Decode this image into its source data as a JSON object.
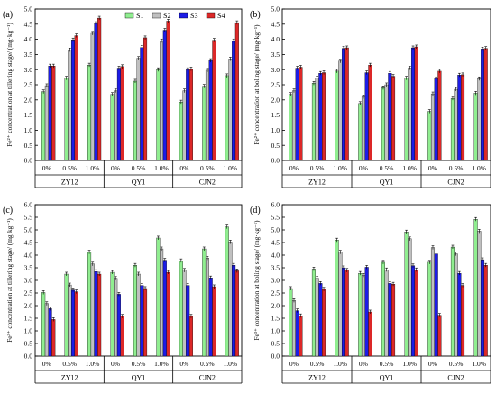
{
  "legend_labels": [
    "S1",
    "S2",
    "S3",
    "S4"
  ],
  "colors": {
    "S1": "#90EE90",
    "S2": "#C0C0C0",
    "S3": "#1C1CE6",
    "S4": "#DC2828"
  },
  "chart_data": [
    {
      "type": "bar",
      "panel_label": "(a)",
      "ylabel": "Fe²⁺ concentration at tillering stage/ (mg·kg⁻¹)",
      "ylim": [
        0,
        5.0
      ],
      "yticks": [
        "0.0",
        "0.5",
        "1.0",
        "1.5",
        "2.0",
        "2.5",
        "3.0",
        "3.5",
        "4.0",
        "4.5",
        "5.0"
      ],
      "groups": [
        "ZY12",
        "QY1",
        "CJN2"
      ],
      "subgroups": [
        "0%",
        "0.5%",
        "1.0%"
      ],
      "legend": true,
      "series": [
        {
          "name": "S1",
          "values": [
            2.27,
            2.72,
            3.15,
            2.18,
            2.62,
            3.0,
            1.93,
            2.45,
            2.8
          ]
        },
        {
          "name": "S2",
          "values": [
            2.47,
            3.65,
            4.2,
            2.3,
            3.37,
            3.95,
            2.3,
            2.98,
            3.35
          ]
        },
        {
          "name": "S3",
          "values": [
            3.12,
            3.98,
            4.52,
            3.05,
            3.73,
            4.3,
            3.0,
            3.3,
            3.95
          ]
        },
        {
          "name": "S4",
          "values": [
            3.12,
            4.12,
            4.7,
            3.1,
            4.05,
            4.6,
            3.02,
            3.97,
            4.55
          ]
        }
      ]
    },
    {
      "type": "bar",
      "panel_label": "(b)",
      "ylabel": "Fe²⁺ concentration at boling stage/ (mg·kg⁻¹)",
      "ylim": [
        0,
        5.0
      ],
      "yticks": [
        "0.0",
        "0.5",
        "1.0",
        "1.5",
        "2.0",
        "2.5",
        "3.0",
        "3.5",
        "4.0",
        "4.5",
        "5.0"
      ],
      "groups": [
        "ZY12",
        "QY1",
        "CJN2"
      ],
      "subgroups": [
        "0%",
        "0.5%",
        "1.0%"
      ],
      "legend": false,
      "series": [
        {
          "name": "S1",
          "values": [
            2.18,
            2.55,
            2.95,
            1.88,
            2.4,
            2.72,
            1.62,
            2.05,
            2.22
          ]
        },
        {
          "name": "S2",
          "values": [
            2.3,
            2.72,
            3.28,
            2.1,
            2.5,
            3.05,
            2.2,
            2.35,
            2.7
          ]
        },
        {
          "name": "S3",
          "values": [
            3.05,
            2.88,
            3.7,
            2.9,
            2.88,
            3.72,
            2.7,
            2.82,
            3.68
          ]
        },
        {
          "name": "S4",
          "values": [
            3.08,
            2.9,
            3.72,
            3.15,
            2.78,
            3.75,
            2.95,
            2.83,
            3.7
          ]
        }
      ]
    },
    {
      "type": "bar",
      "panel_label": "(c)",
      "ylabel": "Fe³⁺ concentration at tillering stage/ (mg·kg⁻¹)",
      "ylim": [
        0,
        6.0
      ],
      "yticks": [
        "0.0",
        "0.5",
        "1.0",
        "1.5",
        "2.0",
        "2.5",
        "3.0",
        "3.5",
        "4.0",
        "4.5",
        "5.0",
        "5.5",
        "6.0"
      ],
      "groups": [
        "ZY12",
        "QY1",
        "CJN2"
      ],
      "subgroups": [
        "0%",
        "0.5%",
        "1.0%"
      ],
      "legend": false,
      "series": [
        {
          "name": "S1",
          "values": [
            2.52,
            3.25,
            4.12,
            3.32,
            3.6,
            4.68,
            3.78,
            4.25,
            5.12
          ]
        },
        {
          "name": "S2",
          "values": [
            2.08,
            2.82,
            3.65,
            3.08,
            3.25,
            4.25,
            3.4,
            3.88,
            4.52
          ]
        },
        {
          "name": "S3",
          "values": [
            1.88,
            2.62,
            3.35,
            2.45,
            2.8,
            3.8,
            2.8,
            3.1,
            3.6
          ]
        },
        {
          "name": "S4",
          "values": [
            1.45,
            2.55,
            3.25,
            1.58,
            2.68,
            3.32,
            1.58,
            2.75,
            3.38
          ]
        }
      ]
    },
    {
      "type": "bar",
      "panel_label": "(d)",
      "ylabel": "Fe³⁺ concentration at boling stage/ (mg·kg⁻¹)",
      "ylim": [
        0,
        6.0
      ],
      "yticks": [
        "0.0",
        "0.5",
        "1.0",
        "1.5",
        "2.0",
        "2.5",
        "3.0",
        "3.5",
        "4.0",
        "4.5",
        "5.0",
        "5.5",
        "6.0"
      ],
      "groups": [
        "ZY12",
        "QY1",
        "CJN2"
      ],
      "subgroups": [
        "0%",
        "0.5%",
        "1.0%"
      ],
      "legend": false,
      "series": [
        {
          "name": "S1",
          "values": [
            2.68,
            3.45,
            4.6,
            3.28,
            3.72,
            4.92,
            3.72,
            4.32,
            5.42
          ]
        },
        {
          "name": "S2",
          "values": [
            2.2,
            3.08,
            4.12,
            3.2,
            3.42,
            4.65,
            4.3,
            4.05,
            4.95
          ]
        },
        {
          "name": "S3",
          "values": [
            1.8,
            2.88,
            3.5,
            3.52,
            2.88,
            3.58,
            4.05,
            3.28,
            3.82
          ]
        },
        {
          "name": "S4",
          "values": [
            1.6,
            2.65,
            3.4,
            1.75,
            2.85,
            3.42,
            1.62,
            2.8,
            3.6
          ]
        }
      ]
    }
  ]
}
